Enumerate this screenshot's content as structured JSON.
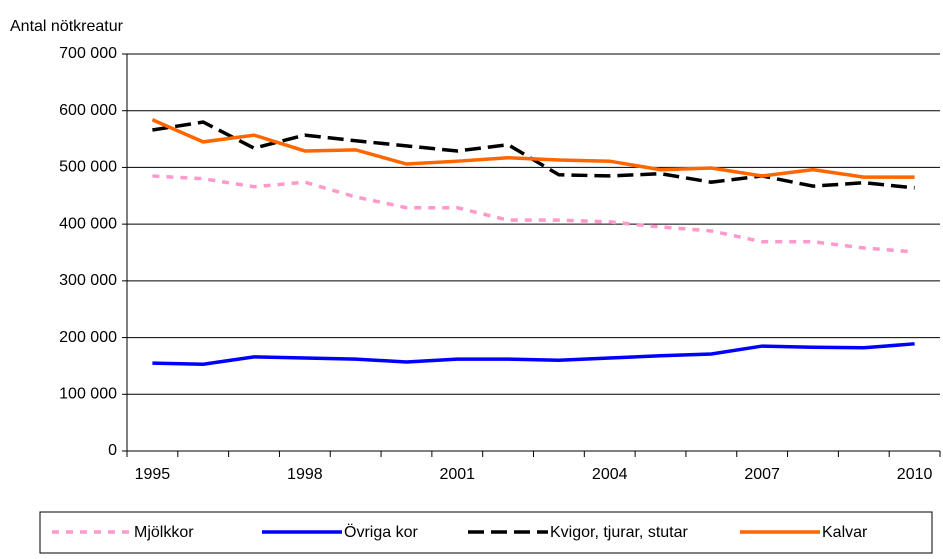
{
  "chart_data": {
    "type": "line",
    "y_label": "Antal nötkreatur",
    "categories": [
      "1995",
      null,
      null,
      "1998",
      null,
      null,
      "2001",
      null,
      null,
      "2004",
      null,
      null,
      "2007",
      null,
      null,
      "2010"
    ],
    "ylim": [
      0,
      700000
    ],
    "yticks": [
      0,
      {
        "value": 100000,
        "label": "100 000"
      },
      {
        "value": 200000,
        "label": "200 000"
      },
      {
        "value": 300000,
        "label": "300 000"
      },
      {
        "value": 400000,
        "label": "400 000"
      },
      {
        "value": 500000,
        "label": "500 000"
      },
      {
        "value": 600000,
        "label": "600 000"
      },
      {
        "value": 700000,
        "label": "700 000"
      }
    ],
    "grid": true,
    "legend": "bottom",
    "series": [
      {
        "name": "Mjölkkor",
        "color": "#ff99cc",
        "line_style": "dashed",
        "values": [
          485000,
          480000,
          466000,
          474000,
          448000,
          429000,
          429000,
          407000,
          407000,
          404000,
          395000,
          388000,
          369000,
          369000,
          358000,
          351000
        ]
      },
      {
        "name": "Övriga kor",
        "color": "#0000ff",
        "line_style": "solid",
        "values": [
          155000,
          153000,
          166000,
          164000,
          162000,
          157000,
          162000,
          162000,
          160000,
          164000,
          168000,
          171000,
          185000,
          183000,
          182000,
          189000
        ]
      },
      {
        "name": "Kvigor, tjurar, stutar",
        "color": "#000000",
        "line_style": "long-dash",
        "values": [
          566000,
          580000,
          534000,
          557000,
          547000,
          538000,
          529000,
          540000,
          487000,
          485000,
          489000,
          474000,
          485000,
          467000,
          473000,
          464000
        ]
      },
      {
        "name": "Kalvar",
        "color": "#ff6600",
        "line_style": "solid",
        "values": [
          584000,
          545000,
          557000,
          529000,
          531000,
          506000,
          511000,
          517000,
          513000,
          511000,
          496000,
          499000,
          485000,
          496000,
          483000,
          483000
        ]
      }
    ]
  }
}
